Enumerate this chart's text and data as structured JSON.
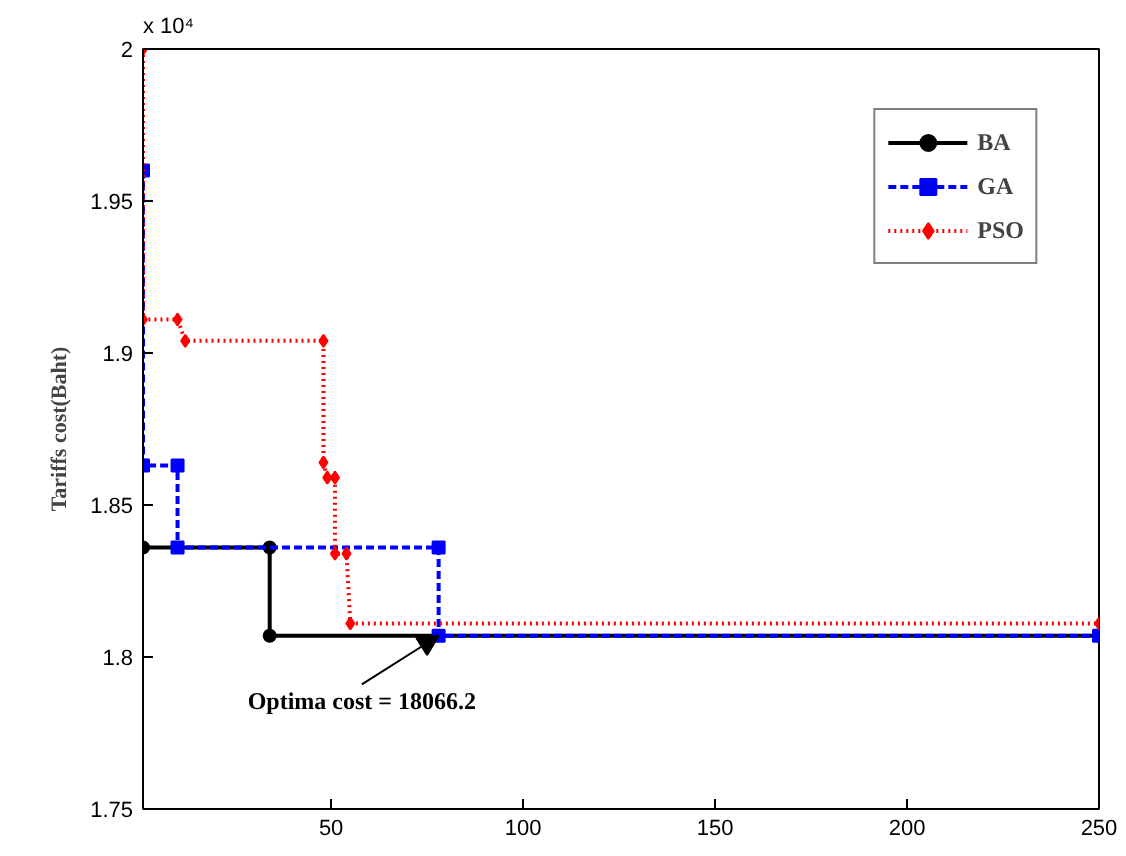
{
  "chart_data": {
    "type": "line",
    "ylabel": "Tariffs cost(Baht)",
    "xlim": [
      1,
      250
    ],
    "ylim": [
      1.75,
      2
    ],
    "xticks": [
      50,
      100,
      150,
      200,
      250
    ],
    "yticks": [
      1.75,
      1.8,
      1.85,
      1.9,
      1.95,
      2
    ],
    "grid": false,
    "legend": "top right",
    "series": [
      {
        "name": "BA",
        "color": "#000000",
        "marker": "circle",
        "line_style": "solid",
        "x": [
          1,
          34,
          34,
          250
        ],
        "values": [
          1.836,
          1.836,
          1.807,
          1.807
        ]
      },
      {
        "name": "GA",
        "color": "#0000ff",
        "marker": "square",
        "line_style": "dashed",
        "x": [
          1,
          1,
          10,
          10,
          78,
          78,
          250
        ],
        "values": [
          1.96,
          1.863,
          1.863,
          1.836,
          1.836,
          1.807,
          1.807
        ]
      },
      {
        "name": "PSO",
        "color": "#ff0000",
        "marker": "diamond",
        "line_style": "dotted",
        "x": [
          1,
          1,
          10,
          12,
          48,
          48,
          49,
          51,
          51,
          54,
          55,
          250
        ],
        "values": [
          2,
          1.911,
          1.911,
          1.904,
          1.904,
          1.864,
          1.859,
          1.859,
          1.834,
          1.834,
          1.811,
          1.811
        ]
      }
    ],
    "annotations": [
      {
        "text": "Optima cost = 18066.2",
        "x": 78,
        "y": 1.807
      },
      "x 10⁴"
    ]
  }
}
